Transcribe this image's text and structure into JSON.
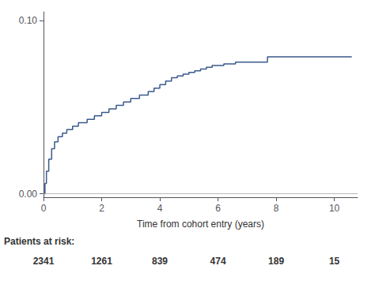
{
  "chart_data": {
    "type": "step",
    "xlabel": "Time from cohort entry (years)",
    "x": [
      0.0,
      0.05,
      0.1,
      0.18,
      0.28,
      0.38,
      0.5,
      0.65,
      0.8,
      1.0,
      1.2,
      1.5,
      1.75,
      2.0,
      2.25,
      2.5,
      2.75,
      3.0,
      3.3,
      3.6,
      3.8,
      4.0,
      4.2,
      4.4,
      4.6,
      4.8,
      5.0,
      5.2,
      5.4,
      5.6,
      5.8,
      6.0,
      6.2,
      6.4,
      6.6,
      7.5,
      7.7,
      10.6
    ],
    "values": [
      0.0,
      0.006,
      0.013,
      0.02,
      0.026,
      0.03,
      0.033,
      0.035,
      0.037,
      0.039,
      0.041,
      0.043,
      0.045,
      0.047,
      0.049,
      0.051,
      0.053,
      0.055,
      0.057,
      0.059,
      0.061,
      0.063,
      0.065,
      0.067,
      0.068,
      0.069,
      0.07,
      0.071,
      0.072,
      0.073,
      0.074,
      0.074,
      0.075,
      0.075,
      0.076,
      0.076,
      0.079,
      0.079
    ],
    "color": "#3a5a8c",
    "xlim": [
      0,
      10.8
    ],
    "ylim": [
      -0.002,
      0.105
    ],
    "xticks": [
      0,
      2,
      4,
      6,
      8,
      10
    ],
    "yticks": [
      {
        "value": 0,
        "label": "0.00"
      },
      {
        "value": 0.1,
        "label": "0.10"
      }
    ],
    "grid": false,
    "hlines": [
      {
        "y": 0,
        "color": "#aaaaaa"
      }
    ],
    "at_risk": {
      "label": "Patients at risk:",
      "x": [
        0,
        2,
        4,
        6,
        8,
        10
      ],
      "values": [
        2341,
        1261,
        839,
        474,
        189,
        15
      ]
    }
  }
}
